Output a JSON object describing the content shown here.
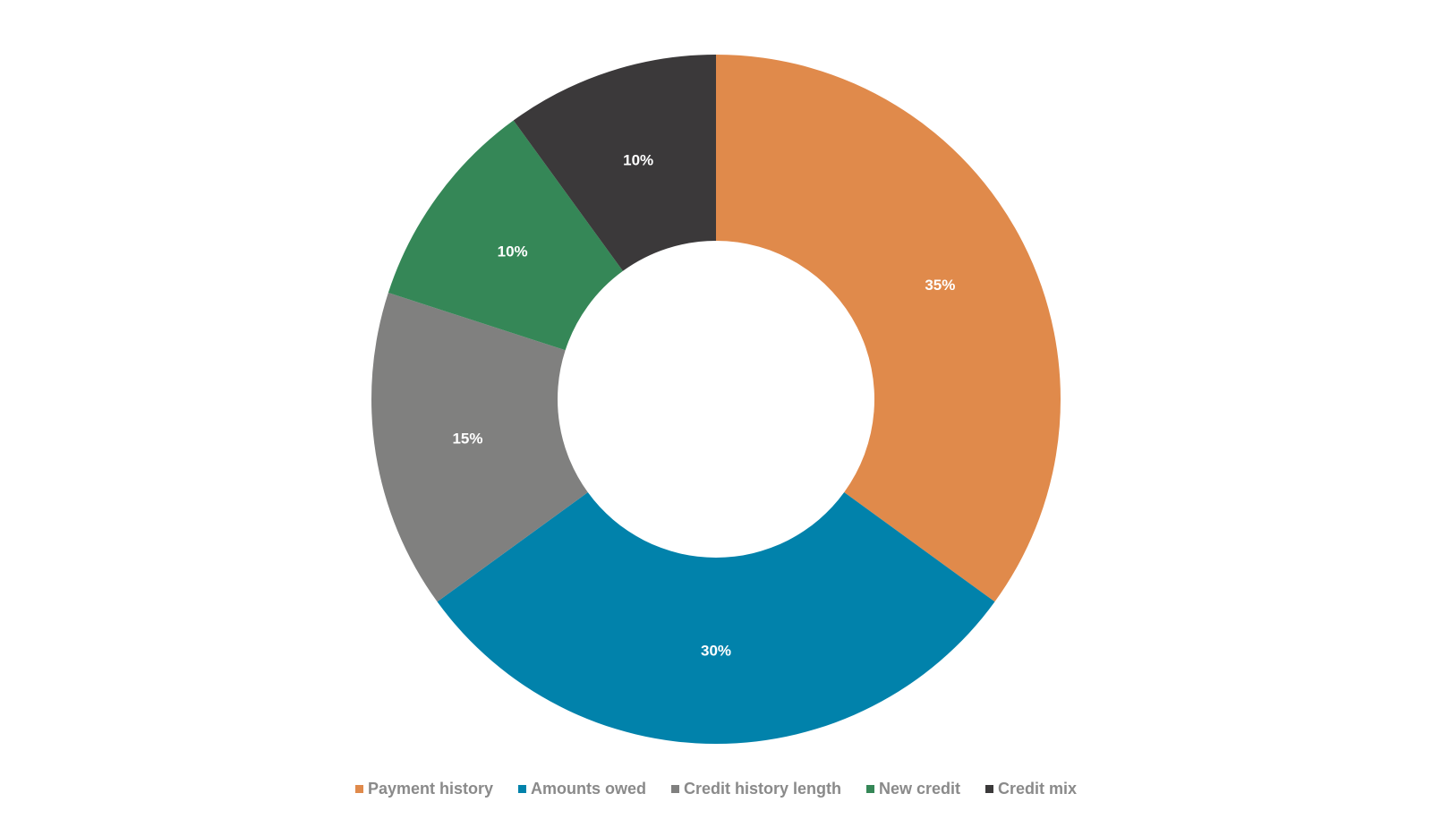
{
  "chart_data": {
    "type": "pie",
    "variant": "donut",
    "title": "",
    "categories": [
      "Payment history",
      "Amounts owed",
      "Credit history length",
      "New credit",
      "Credit mix"
    ],
    "values": [
      35,
      30,
      15,
      10,
      10
    ],
    "value_labels": [
      "35%",
      "30%",
      "15%",
      "10%",
      "10%"
    ],
    "colors": [
      "#e08a4b",
      "#0182ab",
      "#80807f",
      "#358757",
      "#3b393a"
    ],
    "legend_position": "bottom",
    "start_angle": "12 o'clock",
    "direction": "clockwise"
  },
  "legend": {
    "items": [
      {
        "label": "Payment history",
        "color": "#e08a4b"
      },
      {
        "label": "Amounts owed",
        "color": "#0182ab"
      },
      {
        "label": "Credit history length",
        "color": "#80807f"
      },
      {
        "label": "New credit",
        "color": "#358757"
      },
      {
        "label": "Credit mix",
        "color": "#3b393a"
      }
    ]
  }
}
